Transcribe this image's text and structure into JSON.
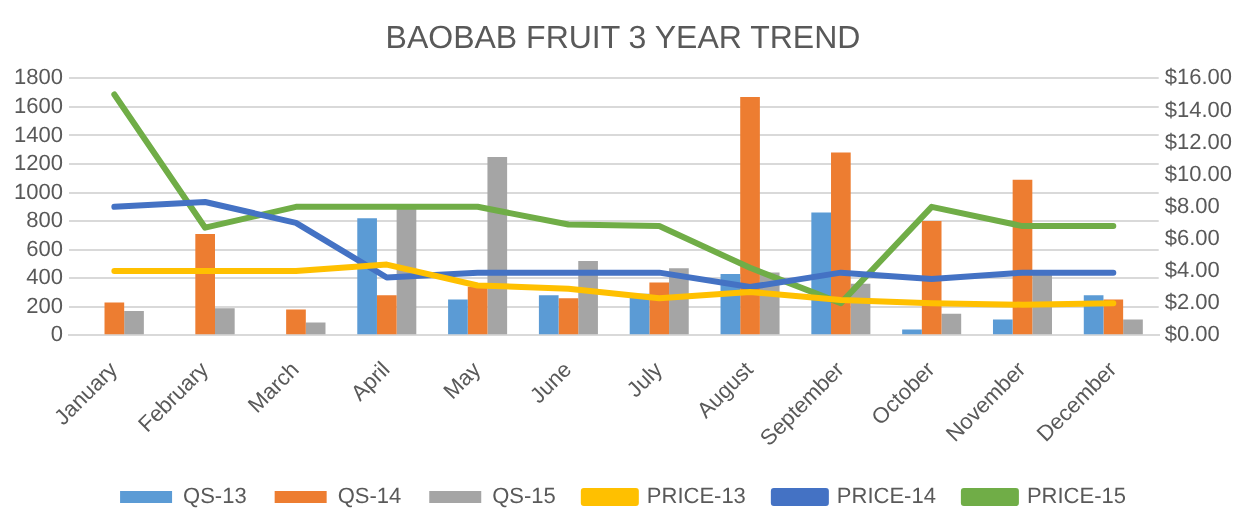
{
  "chart_data": {
    "type": "bar",
    "title": "BAOBAB FRUIT 3 YEAR TREND",
    "categories": [
      "January",
      "February",
      "March",
      "April",
      "May",
      "June",
      "July",
      "August",
      "September",
      "October",
      "November",
      "December"
    ],
    "series": [
      {
        "name": "QS-13",
        "color": "#5b9bd5",
        "values": [
          null,
          null,
          null,
          820,
          250,
          280,
          290,
          430,
          860,
          40,
          110,
          280
        ]
      },
      {
        "name": "QS-14",
        "color": "#ed7d31",
        "values": [
          230,
          710,
          180,
          280,
          340,
          260,
          370,
          1670,
          1280,
          800,
          1090,
          250
        ]
      },
      {
        "name": "QS-15",
        "color": "#a5a5a5",
        "values": [
          170,
          190,
          90,
          890,
          1250,
          520,
          470,
          440,
          360,
          150,
          440,
          110
        ]
      },
      {
        "name": "PRICE-13",
        "type": "line",
        "axis": "y2",
        "color": "#ffc000",
        "values": [
          4.0,
          4.0,
          4.0,
          4.4,
          3.1,
          2.9,
          2.3,
          2.7,
          2.2,
          2.0,
          1.9,
          2.0
        ]
      },
      {
        "name": "PRICE-14",
        "type": "line",
        "axis": "y2",
        "color": "#4472c4",
        "values": [
          8.0,
          8.3,
          7.0,
          3.6,
          3.9,
          3.9,
          3.9,
          3.0,
          3.9,
          3.5,
          3.9,
          3.9
        ]
      },
      {
        "name": "PRICE-15",
        "type": "line",
        "axis": "y2",
        "color": "#70ad47",
        "values": [
          15.0,
          6.7,
          8.0,
          8.0,
          8.0,
          6.9,
          6.8,
          4.2,
          2.0,
          8.0,
          6.8,
          6.8
        ]
      }
    ],
    "ylim": [
      0,
      1800
    ],
    "yticks": [
      0,
      200,
      400,
      600,
      800,
      1000,
      1200,
      1400,
      1600,
      1800
    ],
    "y2lim": [
      0,
      16
    ],
    "y2ticks": [
      {
        "value": 0,
        "label": "$0.00"
      },
      {
        "value": 2,
        "label": "$2.00"
      },
      {
        "value": 4,
        "label": "$4.00"
      },
      {
        "value": 6,
        "label": "$6.00"
      },
      {
        "value": 8,
        "label": "$8.00"
      },
      {
        "value": 10,
        "label": "$10.00"
      },
      {
        "value": 12,
        "label": "$12.00"
      },
      {
        "value": 14,
        "label": "$14.00"
      },
      {
        "value": 16,
        "label": "$16.00"
      }
    ],
    "grid": "y",
    "legend": "bottom",
    "marker": "none"
  }
}
